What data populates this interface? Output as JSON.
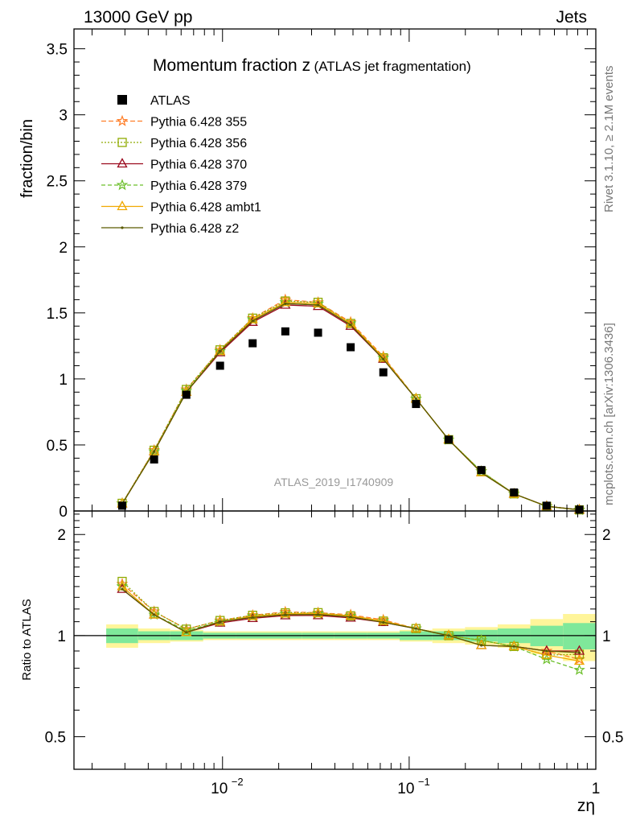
{
  "header": {
    "left": "13000 GeV pp",
    "right": "Jets"
  },
  "side_text": {
    "events": "Rivet 3.1.10, ≥ 2.1M events",
    "source": "mcplots.cern.ch [arXiv:1306.3436]"
  },
  "chart_data": {
    "type": "line",
    "title": "Momentum fraction z",
    "title_suffix": "(ATLAS jet fragmentation)",
    "watermark": "ATLAS_2019_I1740909",
    "xlabel": "zη",
    "ylabel": "fraction/bin",
    "ratio_ylabel": "Ratio to ATLAS",
    "xscale": "log",
    "xlim": [
      0.0016,
      1.0
    ],
    "ylim": [
      0,
      3.65
    ],
    "ratio_ylim": [
      0.4,
      2.35
    ],
    "ratio_yscale": "log",
    "xticks": [
      "10^-2",
      "10^-1",
      "1"
    ],
    "yticks": [
      "0",
      "0.5",
      "1",
      "1.5",
      "2",
      "2.5",
      "3",
      "3.5"
    ],
    "ratio_yticks": [
      "0.5",
      "1",
      "2"
    ],
    "legend_position": "top-left",
    "x": [
      0.0029,
      0.0043,
      0.0064,
      0.0097,
      0.0145,
      0.0217,
      0.0325,
      0.0486,
      0.0727,
      0.1088,
      0.1628,
      0.2436,
      0.3645,
      0.5453,
      0.816
    ],
    "data": {
      "name": "ATLAS",
      "values": [
        0.04,
        0.39,
        0.88,
        1.1,
        1.27,
        1.36,
        1.35,
        1.24,
        1.05,
        0.81,
        0.54,
        0.31,
        0.14,
        0.04,
        0.01
      ],
      "band_inner": [
        0.05,
        0.03,
        0.03,
        0.02,
        0.02,
        0.02,
        0.02,
        0.02,
        0.02,
        0.03,
        0.03,
        0.04,
        0.05,
        0.07,
        0.09
      ],
      "band_outer": [
        0.08,
        0.05,
        0.04,
        0.03,
        0.03,
        0.03,
        0.03,
        0.03,
        0.03,
        0.04,
        0.05,
        0.06,
        0.08,
        0.12,
        0.16
      ]
    },
    "series": [
      {
        "name": "Pythia 6.428 355",
        "color": "#ff7f2a",
        "marker": "star",
        "dash": "6,3",
        "values": [
          0.057,
          0.46,
          0.92,
          1.22,
          1.46,
          1.6,
          1.58,
          1.43,
          1.17,
          0.85,
          0.54,
          0.3,
          0.13,
          0.036,
          0.0085
        ]
      },
      {
        "name": "Pythia 6.428 356",
        "color": "#8faa00",
        "marker": "square",
        "dash": "2,2",
        "values": [
          0.058,
          0.46,
          0.92,
          1.22,
          1.46,
          1.59,
          1.58,
          1.42,
          1.16,
          0.85,
          0.54,
          0.3,
          0.13,
          0.035,
          0.0088
        ]
      },
      {
        "name": "Pythia 6.428 370",
        "color": "#9b0a1e",
        "marker": "triangle",
        "dash": "",
        "values": [
          0.055,
          0.45,
          0.9,
          1.2,
          1.43,
          1.56,
          1.55,
          1.4,
          1.15,
          0.85,
          0.54,
          0.29,
          0.13,
          0.036,
          0.009
        ]
      },
      {
        "name": "Pythia 6.428 379",
        "color": "#6cbf2a",
        "marker": "star",
        "dash": "5,3",
        "values": [
          0.056,
          0.45,
          0.91,
          1.21,
          1.45,
          1.58,
          1.57,
          1.42,
          1.16,
          0.85,
          0.54,
          0.3,
          0.13,
          0.034,
          0.0079
        ]
      },
      {
        "name": "Pythia 6.428 ambt1",
        "color": "#f0a800",
        "marker": "triangle",
        "dash": "",
        "values": [
          0.056,
          0.45,
          0.9,
          1.21,
          1.45,
          1.58,
          1.57,
          1.42,
          1.16,
          0.85,
          0.54,
          0.29,
          0.13,
          0.035,
          0.0084
        ]
      },
      {
        "name": "Pythia 6.428 z2",
        "color": "#5a5a00",
        "marker": "dot",
        "dash": "",
        "values": [
          0.055,
          0.45,
          0.9,
          1.21,
          1.44,
          1.57,
          1.56,
          1.41,
          1.15,
          0.85,
          0.54,
          0.29,
          0.13,
          0.036,
          0.0089
        ]
      }
    ]
  }
}
